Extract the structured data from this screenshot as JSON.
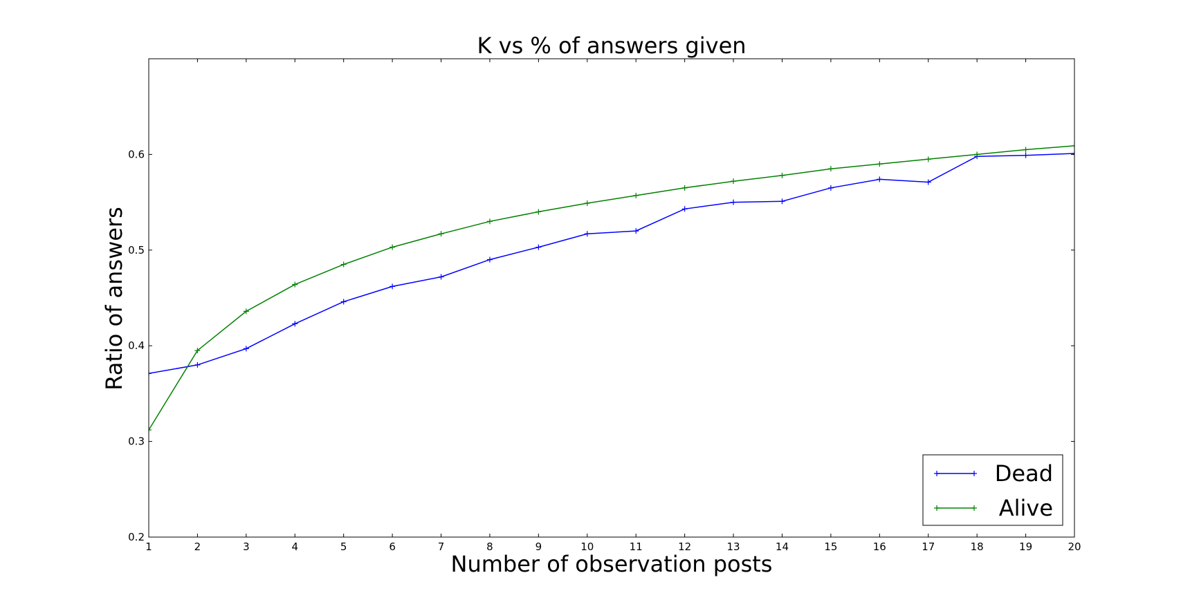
{
  "chart_data": {
    "type": "line",
    "title": "K vs % of answers given",
    "xlabel": "Number of observation posts",
    "ylabel": "Ratio of answers",
    "x": [
      1,
      2,
      3,
      4,
      5,
      6,
      7,
      8,
      9,
      10,
      11,
      12,
      13,
      14,
      15,
      16,
      17,
      18,
      19,
      20
    ],
    "xlim": [
      1,
      20
    ],
    "ylim": [
      0.2,
      0.7
    ],
    "x_ticks": [
      "1",
      "2",
      "3",
      "4",
      "5",
      "6",
      "7",
      "8",
      "9",
      "10",
      "11",
      "12",
      "13",
      "14",
      "15",
      "16",
      "17",
      "18",
      "19",
      "20"
    ],
    "y_ticks": [
      "0.2",
      "0.3",
      "0.4",
      "0.5",
      "0.6"
    ],
    "grid": false,
    "legend_position": "bottom-right",
    "series": [
      {
        "name": "Dead",
        "color": "#0000ff",
        "marker": "plus",
        "values": [
          0.371,
          0.38,
          0.397,
          0.423,
          0.446,
          0.462,
          0.472,
          0.49,
          0.503,
          0.517,
          0.52,
          0.543,
          0.55,
          0.551,
          0.565,
          0.574,
          0.571,
          0.598,
          0.599,
          0.601
        ]
      },
      {
        "name": "Alive",
        "color": "#008000",
        "marker": "plus",
        "values": [
          0.312,
          0.395,
          0.436,
          0.464,
          0.485,
          0.503,
          0.517,
          0.53,
          0.54,
          0.549,
          0.557,
          0.565,
          0.572,
          0.578,
          0.585,
          0.59,
          0.595,
          0.6,
          0.605,
          0.609
        ]
      }
    ]
  }
}
